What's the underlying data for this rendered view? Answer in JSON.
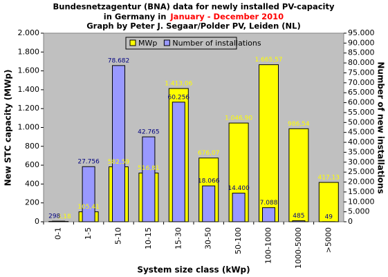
{
  "chart_data": {
    "type": "bar",
    "title_lines": [
      "Bundesnetzagentur (BNA) data for newly installed PV-capacity",
      "in Germany in",
      "January - December 2010",
      "Graph by Peter J. Segaar/Polder PV, Leiden (NL)"
    ],
    "x_label": "System size class (kWp)",
    "y_label": "New STC capacity (MWp)",
    "y2_label": "Number of new installations",
    "categories": [
      "0-1",
      "1-5",
      "5-10",
      "10-15",
      "15-30",
      "30-50",
      "50-100",
      "100-1000",
      "1000-5000",
      ">5000"
    ],
    "series": [
      {
        "name": "MWp",
        "color": "#ffff00",
        "label_color": "#ffff00",
        "values": [
          3.18,
          105.41,
          582.59,
          516.81,
          1413.06,
          676.07,
          1046.9,
          1665.57,
          986.54,
          417.13
        ],
        "value_labels": [
          "3,18",
          "105,41",
          "582,59",
          "516,81",
          "1.413,06",
          "676,07",
          "1.046,90",
          "1.665,57",
          "986,54",
          "417,13"
        ]
      },
      {
        "name": "Number of installations",
        "color": "#9999ff",
        "label_color": "#000080",
        "axis": "y2",
        "values": [
          298,
          27756,
          78682,
          42765,
          60256,
          18066,
          14400,
          7088,
          485,
          49
        ],
        "value_labels": [
          "298",
          "27.756",
          "78.682",
          "42.765",
          "60.256",
          "18.066",
          "14.400",
          "7.088",
          "485",
          "49"
        ]
      }
    ],
    "ylim": [
      0,
      2000
    ],
    "yticks": [
      0,
      200,
      400,
      600,
      800,
      {
        "value": 1000,
        "label": "1.000"
      },
      {
        "value": 1200,
        "label": "1.200"
      },
      {
        "value": 1400,
        "label": "1.400"
      },
      {
        "value": 1600,
        "label": "1.600"
      },
      {
        "value": 1800,
        "label": "1.800"
      },
      {
        "value": 2000,
        "label": "2.000"
      }
    ],
    "y2lim": [
      0,
      95000
    ],
    "y2ticks": [
      0,
      {
        "value": 5000,
        "label": "5.000"
      },
      {
        "value": 10000,
        "label": "10.000"
      },
      {
        "value": 15000,
        "label": "15.000"
      },
      {
        "value": 20000,
        "label": "20.000"
      },
      {
        "value": 25000,
        "label": "25.000"
      },
      {
        "value": 30000,
        "label": "30.000"
      },
      {
        "value": 35000,
        "label": "35.000"
      },
      {
        "value": 40000,
        "label": "40.000"
      },
      {
        "value": 45000,
        "label": "45.000"
      },
      {
        "value": 50000,
        "label": "50.000"
      },
      {
        "value": 55000,
        "label": "55.000"
      },
      {
        "value": 60000,
        "label": "60.000"
      },
      {
        "value": 65000,
        "label": "65.000"
      },
      {
        "value": 70000,
        "label": "70.000"
      },
      {
        "value": 75000,
        "label": "75.000"
      },
      {
        "value": 80000,
        "label": "80.000"
      },
      {
        "value": 85000,
        "label": "85.000"
      },
      {
        "value": 90000,
        "label": "90.000"
      },
      {
        "value": 95000,
        "label": "95.000"
      }
    ],
    "grid": false,
    "legend": "top",
    "background": "#c0c0c0",
    "title_highlight_color": "#ff0000"
  }
}
